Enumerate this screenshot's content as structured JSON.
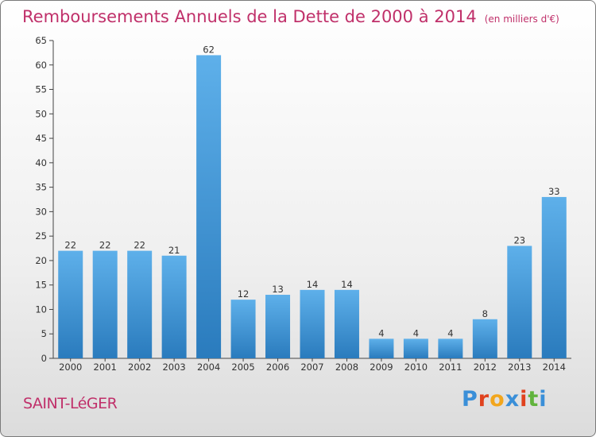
{
  "title": "Remboursements Annuels de la Dette de 2000 à 2014",
  "unit": "(en milliers d'€)",
  "commune": "SAINT-LéGER",
  "logo": {
    "letters": [
      "P",
      "r",
      "o",
      "x",
      "i",
      "t",
      "i"
    ],
    "colors": [
      "#3a8fd8",
      "#e0421e",
      "#f2a61d",
      "#3a8fd8",
      "#e0421e",
      "#61b33c",
      "#3a8fd8"
    ]
  },
  "colors": {
    "bar_top": "#5eb0ea",
    "bar_bottom": "#2a7bbd",
    "accent": "#c0306a"
  },
  "chart_data": {
    "type": "bar",
    "categories": [
      "2000",
      "2001",
      "2002",
      "2003",
      "2004",
      "2005",
      "2006",
      "2007",
      "2008",
      "2009",
      "2010",
      "2011",
      "2012",
      "2013",
      "2014"
    ],
    "values": [
      22,
      22,
      22,
      21,
      62,
      12,
      13,
      14,
      14,
      4,
      4,
      4,
      8,
      23,
      33
    ],
    "ylim": [
      0,
      65
    ],
    "yticks": [
      0,
      5,
      10,
      15,
      20,
      25,
      30,
      35,
      40,
      45,
      50,
      55,
      60,
      65
    ],
    "grid": false,
    "legend": "none"
  }
}
